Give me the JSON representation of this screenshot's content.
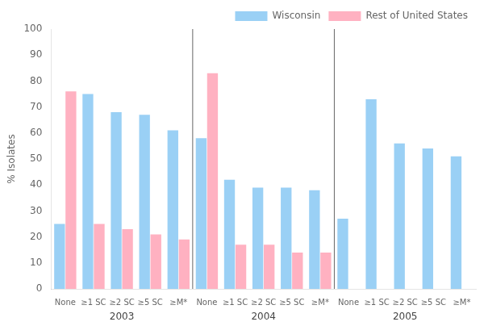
{
  "chart_data": {
    "type": "bar",
    "categories": [
      "None",
      "≥1 SC",
      "≥2 SC",
      "≥5 SC",
      "≥M*",
      "None",
      "≥1 SC",
      "≥2 SC",
      "≥5 SC",
      "≥M*",
      "None",
      "≥1 SC",
      "≥2 SC",
      "≥5 SC",
      "≥M*"
    ],
    "groups": [
      "2003",
      "2004",
      "2005"
    ],
    "series": [
      {
        "name": "Wisconsin",
        "values": [
          25,
          75,
          68,
          67,
          61,
          58,
          42,
          39,
          39,
          38,
          27,
          73,
          56,
          54,
          51
        ]
      },
      {
        "name": "Rest of United States",
        "values": [
          76,
          25,
          23,
          21,
          19,
          83,
          17,
          17,
          14,
          14,
          null,
          null,
          null,
          null,
          null
        ]
      }
    ],
    "ylabel": "% Isolates",
    "ylim": [
      0,
      100
    ],
    "yticks": [
      0,
      10,
      20,
      30,
      40,
      50,
      60,
      70,
      80,
      90,
      100
    ],
    "grid": false,
    "legend": "upper right"
  }
}
